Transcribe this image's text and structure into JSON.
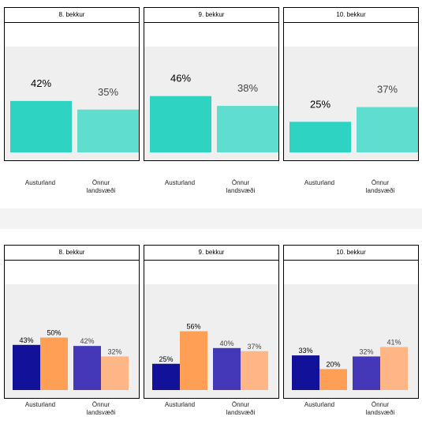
{
  "colors": {
    "top_austurland": "#2fd3c2",
    "top_onnur": "#5fddcf",
    "bottom_a_austurland": "#11119a",
    "bottom_b_austurland": "#ff9f55",
    "bottom_a_onnur": "#4438b8",
    "bottom_b_onnur": "#ffb687",
    "plot_bg": "#efefef"
  },
  "chart_data": [
    {
      "type": "bar",
      "title": "8. bekkur",
      "categories": [
        "Austurland",
        "Önnur landsvæði"
      ],
      "series": [
        {
          "values": [
            42,
            35
          ]
        }
      ],
      "value_labels": [
        "42%",
        "35%"
      ],
      "ylim": [
        0,
        100
      ]
    },
    {
      "type": "bar",
      "title": "9. bekkur",
      "categories": [
        "Austurland",
        "Önnur landsvæði"
      ],
      "series": [
        {
          "values": [
            46,
            38
          ]
        }
      ],
      "value_labels": [
        "46%",
        "38%"
      ],
      "ylim": [
        0,
        100
      ]
    },
    {
      "type": "bar",
      "title": "10. bekkur",
      "categories": [
        "Austurland",
        "Önnur landsvæði"
      ],
      "series": [
        {
          "values": [
            25,
            37
          ]
        }
      ],
      "value_labels": [
        "25%",
        "37%"
      ],
      "ylim": [
        0,
        100
      ]
    },
    {
      "type": "bar",
      "title": "8. bekkur",
      "categories": [
        "Austurland",
        "Önnur landsvæði"
      ],
      "series": [
        {
          "values": [
            43,
            42
          ]
        },
        {
          "values": [
            50,
            32
          ]
        }
      ],
      "value_labels": [
        [
          "43%",
          "42%"
        ],
        [
          "50%",
          "32%"
        ]
      ],
      "ylim": [
        0,
        100
      ]
    },
    {
      "type": "bar",
      "title": "9. bekkur",
      "categories": [
        "Austurland",
        "Önnur landsvæði"
      ],
      "series": [
        {
          "values": [
            25,
            40
          ]
        },
        {
          "values": [
            56,
            37
          ]
        }
      ],
      "value_labels": [
        [
          "25%",
          "40%"
        ],
        [
          "56%",
          "37%"
        ]
      ],
      "ylim": [
        0,
        100
      ]
    },
    {
      "type": "bar",
      "title": "10. bekkur",
      "categories": [
        "Austurland",
        "Önnur landsvæði"
      ],
      "series": [
        {
          "values": [
            33,
            32
          ]
        },
        {
          "values": [
            20,
            41
          ]
        }
      ],
      "value_labels": [
        [
          "33%",
          "32%"
        ],
        [
          "20%",
          "41%"
        ]
      ],
      "ylim": [
        0,
        100
      ]
    }
  ]
}
